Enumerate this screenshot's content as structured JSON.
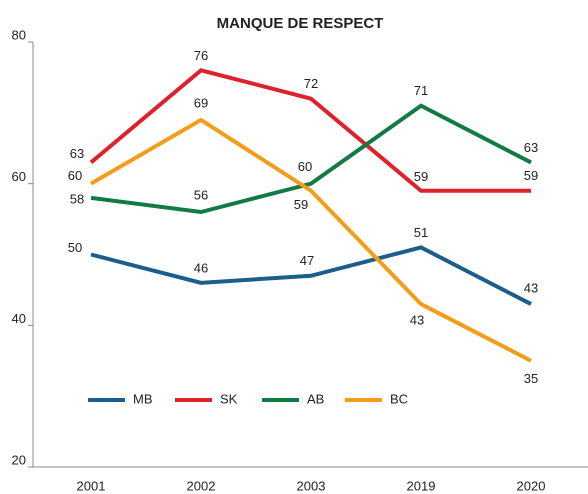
{
  "chart_data": {
    "type": "line",
    "title": "MANQUE DE RESPECT",
    "categories": [
      "2001",
      "2002",
      "2003",
      "2019",
      "2020"
    ],
    "series": [
      {
        "name": "MB",
        "color": "#1b5e8c",
        "values": [
          50,
          46,
          47,
          51,
          43
        ]
      },
      {
        "name": "SK",
        "color": "#e0202a",
        "values": [
          63,
          76,
          72,
          59,
          59
        ]
      },
      {
        "name": "AB",
        "color": "#127a45",
        "values": [
          58,
          56,
          60,
          71,
          63
        ]
      },
      {
        "name": "BC",
        "color": "#f59c1a",
        "values": [
          60,
          69,
          59,
          43,
          35
        ]
      }
    ],
    "ylim": [
      20,
      80
    ],
    "yticks": [
      20,
      40,
      60,
      80
    ],
    "grid": false
  }
}
